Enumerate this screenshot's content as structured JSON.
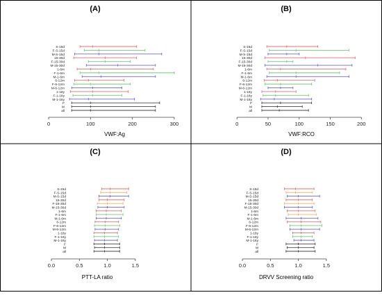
{
  "figure": {
    "border_color": "#000000",
    "background": "#ffffff"
  },
  "chart_data": [
    {
      "type": "interval",
      "panel_label": "(A)",
      "xlabel": "VWF:Ag",
      "xlim": [
        -10,
        335
      ],
      "xticks": [
        0,
        100,
        200,
        300
      ],
      "xtick_labels": [
        "0",
        "100",
        "200",
        "300"
      ],
      "categories": [
        "S-15d",
        "F-S-15d",
        "M-S-15d",
        "15-30d",
        "F-15-30d",
        "M-15-30d",
        "1-6m",
        "F-1-6m",
        "M-1-6m",
        "6-12m",
        "F-6-12m",
        "M-6-12m",
        "1-18y",
        "F-1-18y",
        "M-1-18y",
        "F",
        "M",
        "all"
      ],
      "series_colors": [
        "#e87070",
        "#70cc70",
        "#6a6ae0",
        "#e87070",
        "#70cc70",
        "#6a6ae0",
        "#e87070",
        "#70cc70",
        "#6a6ae0",
        "#e87070",
        "#70cc70",
        "#6a6ae0",
        "#e87070",
        "#70cc70",
        "#6a6ae0",
        "#444444",
        "#444444",
        "#444444"
      ],
      "low": [
        75,
        85,
        62,
        60,
        95,
        90,
        68,
        75,
        80,
        62,
        60,
        55,
        52,
        58,
        50,
        55,
        55,
        55
      ],
      "mid": [
        105,
        120,
        120,
        135,
        135,
        165,
        100,
        120,
        125,
        95,
        100,
        105,
        105,
        105,
        95,
        100,
        100,
        100
      ],
      "high": [
        210,
        230,
        270,
        210,
        195,
        255,
        250,
        300,
        255,
        180,
        195,
        175,
        190,
        175,
        205,
        265,
        255,
        255
      ]
    },
    {
      "type": "interval",
      "panel_label": "(B)",
      "xlabel": "VWF:RCO",
      "xlim": [
        -8,
        222
      ],
      "xticks": [
        0,
        50,
        100,
        150,
        200
      ],
      "xtick_labels": [
        "0",
        "50",
        "100",
        "150",
        "200"
      ],
      "categories": [
        "S-15d",
        "F-S-15d",
        "M-S-15d",
        "15-30d",
        "F-15-30d",
        "M-15-30d",
        "1-6m",
        "F-1-6m",
        "M-1-6m",
        "6-12m",
        "F-6-12m",
        "M-6-12m",
        "1-18y",
        "F-1-18y",
        "M-1-18y",
        "F",
        "M",
        "all"
      ],
      "series_colors": [
        "#e87070",
        "#70cc70",
        "#6a6ae0",
        "#e87070",
        "#70cc70",
        "#6a6ae0",
        "#e87070",
        "#70cc70",
        "#6a6ae0",
        "#e87070",
        "#70cc70",
        "#6a6ae0",
        "#e87070",
        "#70cc70",
        "#6a6ae0",
        "#444444",
        "#444444",
        "#444444"
      ],
      "low": [
        48,
        52,
        50,
        45,
        50,
        45,
        48,
        52,
        48,
        44,
        45,
        50,
        40,
        42,
        38,
        40,
        40,
        40
      ],
      "mid": [
        80,
        95,
        80,
        110,
        80,
        130,
        70,
        95,
        95,
        65,
        70,
        70,
        62,
        62,
        60,
        70,
        65,
        68
      ],
      "high": [
        130,
        180,
        100,
        190,
        90,
        185,
        175,
        165,
        180,
        125,
        120,
        90,
        95,
        115,
        120,
        120,
        105,
        115
      ]
    },
    {
      "type": "interval",
      "panel_label": "(C)",
      "xlabel": "PTT-LA ratio",
      "xlim": [
        -0.05,
        1.75
      ],
      "xticks": [
        0.0,
        0.5,
        1.0,
        1.5
      ],
      "xtick_labels": [
        "0.0",
        "0.5",
        "1.0",
        "1.5"
      ],
      "categories": [
        "S-15d",
        "F-S-15d",
        "M-S-15d",
        "15-30d",
        "F-15-30d",
        "M-15-30d",
        "1-6m",
        "F-1-6m",
        "M-1-6m",
        "6-12m",
        "F-6-12m",
        "M-6-12m",
        "1-18y",
        "F-1-18y",
        "M-1-18y",
        "F",
        "M",
        "all"
      ],
      "series_colors": [
        "#e87070",
        "#f0b060",
        "#6a6ae0",
        "#e87070",
        "#f0b060",
        "#6a6ae0",
        "#e87070",
        "#70cc70",
        "#6a6ae0",
        "#e87070",
        "#70cc70",
        "#6a6ae0",
        "#e87070",
        "#70cc70",
        "#6a6ae0",
        "#444444",
        "#444444",
        "#444444"
      ],
      "low": [
        0.9,
        0.88,
        0.85,
        0.85,
        0.82,
        0.83,
        0.8,
        0.8,
        0.8,
        0.78,
        0.77,
        0.78,
        0.76,
        0.76,
        0.77,
        0.76,
        0.77,
        0.76
      ],
      "mid": [
        1.05,
        1.05,
        1.05,
        1.0,
        1.0,
        1.0,
        0.98,
        0.98,
        0.98,
        0.96,
        0.96,
        0.96,
        0.95,
        0.95,
        0.95,
        0.95,
        0.95,
        0.95
      ],
      "high": [
        1.38,
        1.35,
        1.38,
        1.3,
        1.28,
        1.3,
        1.25,
        1.28,
        1.25,
        1.2,
        1.22,
        1.2,
        1.18,
        1.2,
        1.18,
        1.22,
        1.22,
        1.22
      ]
    },
    {
      "type": "interval",
      "panel_label": "(D)",
      "xlabel": "DRVV Screening ratio",
      "xlim": [
        -0.05,
        1.75
      ],
      "xticks": [
        0.0,
        0.5,
        1.0,
        1.5
      ],
      "xtick_labels": [
        "0.0",
        "0.5",
        "1.0",
        "1.5"
      ],
      "categories": [
        "S-15d",
        "F-S-15d",
        "M-S-15d",
        "15-30d",
        "F-15-30d",
        "M-15-30d",
        "1-6m",
        "F-1-6m",
        "M-1-6m",
        "6-12m",
        "F-6-12m",
        "M-6-12m",
        "1-18y",
        "F-1-18y",
        "M-1-18y",
        "F",
        "M",
        "all"
      ],
      "series_colors": [
        "#e87070",
        "#f0b060",
        "#6a6ae0",
        "#e87070",
        "#f0b060",
        "#6a6ae0",
        "#e87070",
        "#f0b060",
        "#6a6ae0",
        "#e87070",
        "#70cc70",
        "#6a6ae0",
        "#e87070",
        "#70cc70",
        "#6a6ae0",
        "#444444",
        "#444444",
        "#444444"
      ],
      "low": [
        0.75,
        0.78,
        0.8,
        0.78,
        0.75,
        0.75,
        0.8,
        0.82,
        0.78,
        0.8,
        0.85,
        0.85,
        0.9,
        0.9,
        0.92,
        0.78,
        0.8,
        0.78
      ],
      "mid": [
        0.95,
        0.95,
        1.0,
        1.0,
        1.0,
        1.0,
        1.0,
        1.0,
        1.05,
        1.05,
        1.05,
        1.05,
        1.05,
        1.05,
        1.05,
        1.0,
        1.0,
        1.0
      ],
      "high": [
        1.28,
        1.25,
        1.38,
        1.25,
        1.28,
        1.25,
        1.3,
        1.32,
        1.35,
        1.4,
        1.42,
        1.38,
        1.28,
        1.25,
        1.28,
        1.3,
        1.28,
        1.3
      ]
    }
  ]
}
